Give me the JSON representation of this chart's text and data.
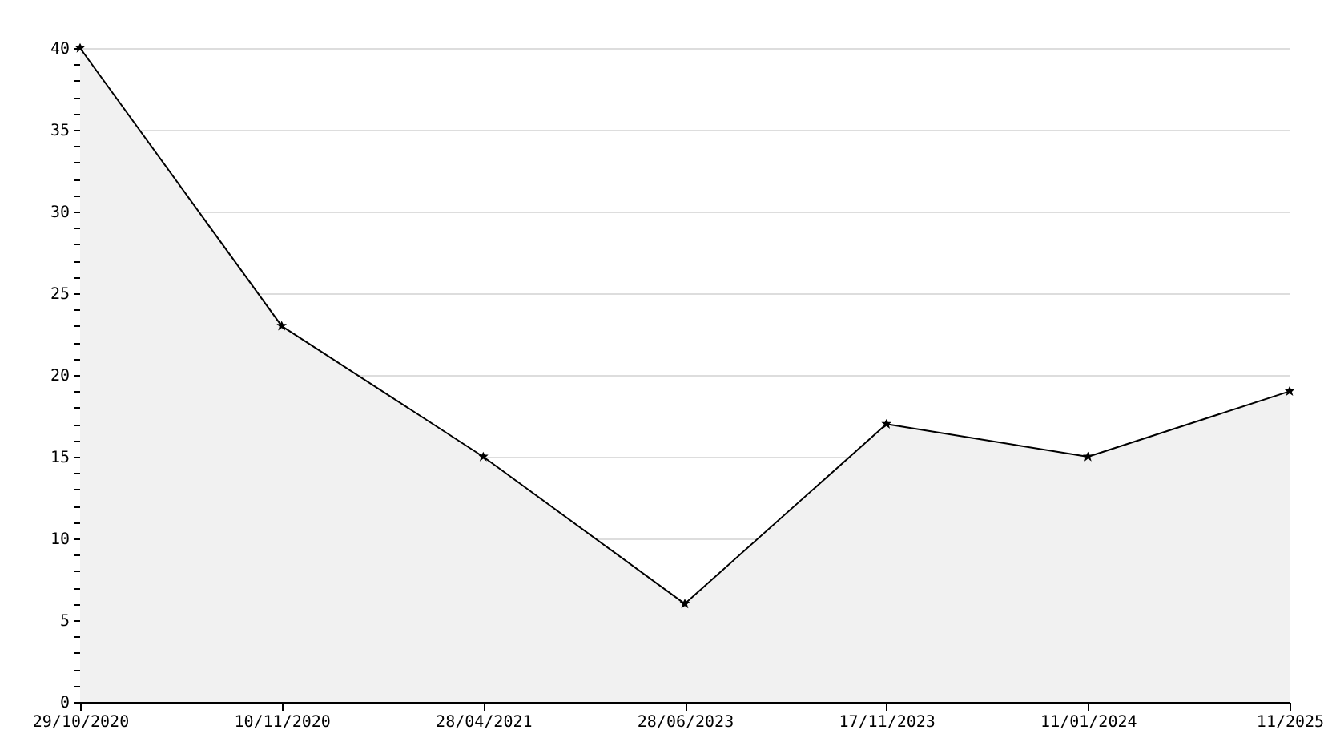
{
  "chart_data": {
    "type": "area",
    "categories": [
      "29/10/2020",
      "10/11/2020",
      "28/04/2021",
      "28/06/2023",
      "17/11/2023",
      "11/01/2024",
      "11/2025"
    ],
    "series": [
      {
        "color": "#000000",
        "values": [
          40,
          23,
          15,
          6,
          17,
          15,
          19
        ]
      }
    ],
    "ylim": [
      0,
      40
    ],
    "yticks": [
      0,
      {
        "value": 1,
        "label": null
      },
      {
        "value": 2,
        "label": null
      },
      {
        "value": 3,
        "label": null
      },
      {
        "value": 4,
        "label": null
      },
      5,
      {
        "value": 6,
        "label": null
      },
      {
        "value": 7,
        "label": null
      },
      {
        "value": 8,
        "label": null
      },
      {
        "value": 9,
        "label": null
      },
      10,
      {
        "value": 11,
        "label": null
      },
      {
        "value": 12,
        "label": null
      },
      {
        "value": 13,
        "label": null
      },
      {
        "value": 14,
        "label": null
      },
      15,
      {
        "value": 16,
        "label": null
      },
      {
        "value": 17,
        "label": null
      },
      {
        "value": 18,
        "label": null
      },
      {
        "value": 19,
        "label": null
      },
      20,
      {
        "value": 21,
        "label": null
      },
      {
        "value": 22,
        "label": null
      },
      {
        "value": 23,
        "label": null
      },
      {
        "value": 24,
        "label": null
      },
      25,
      {
        "value": 26,
        "label": null
      },
      {
        "value": 27,
        "label": null
      },
      {
        "value": 28,
        "label": null
      },
      {
        "value": 29,
        "label": null
      },
      30,
      {
        "value": 31,
        "label": null
      },
      {
        "value": 32,
        "label": null
      },
      {
        "value": 33,
        "label": null
      },
      {
        "value": 34,
        "label": null
      },
      35,
      {
        "value": 36,
        "label": null
      },
      {
        "value": 37,
        "label": null
      },
      {
        "value": 38,
        "label": null
      },
      {
        "value": 39,
        "label": null
      },
      40
    ],
    "grid": "y",
    "marker": "star",
    "legend": false
  }
}
